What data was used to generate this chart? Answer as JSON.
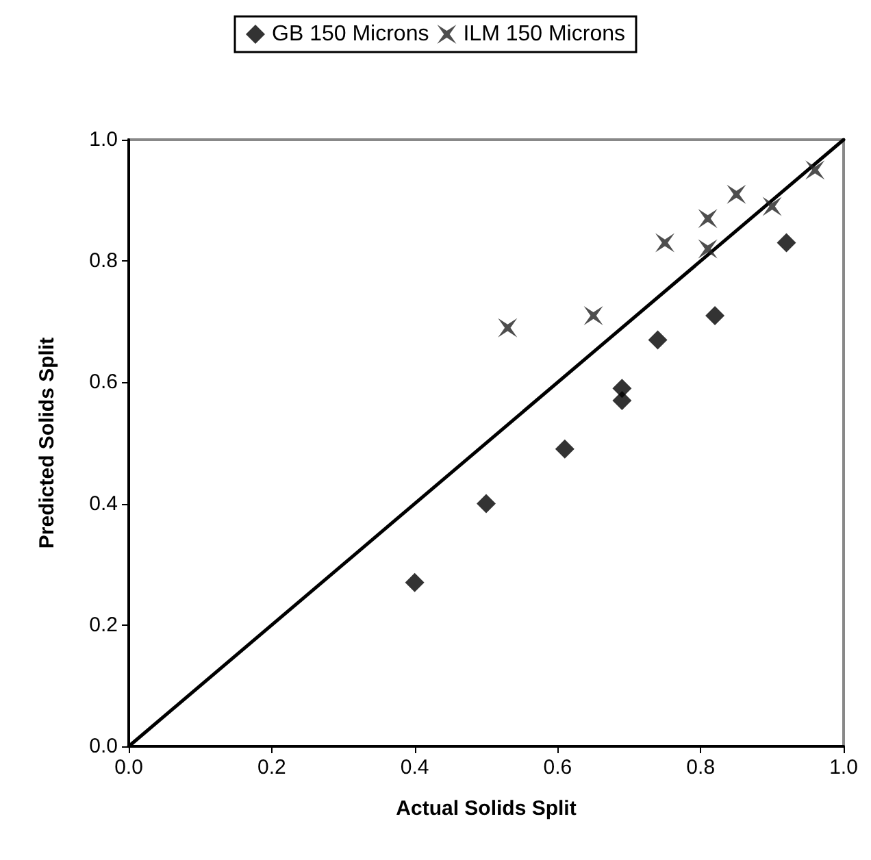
{
  "chart_data": {
    "type": "scatter",
    "xlabel": "Actual Solids Split",
    "ylabel": "Predicted Solids Split",
    "xlim": [
      0,
      1
    ],
    "ylim": [
      0,
      1
    ],
    "xticks": [
      {
        "value": 0,
        "label": "0.0"
      },
      {
        "value": 0.2,
        "label": "0.2"
      },
      {
        "value": 0.4,
        "label": "0.4"
      },
      {
        "value": 0.6,
        "label": "0.6"
      },
      {
        "value": 0.8,
        "label": "0.8"
      },
      {
        "value": 1,
        "label": "1.0"
      }
    ],
    "yticks": [
      {
        "value": 0,
        "label": "0.0"
      },
      {
        "value": 0.2,
        "label": "0.2"
      },
      {
        "value": 0.4,
        "label": "0.4"
      },
      {
        "value": 0.6,
        "label": "0.6"
      },
      {
        "value": 0.8,
        "label": "0.8"
      },
      {
        "value": 1,
        "label": "1.0"
      }
    ],
    "grid": false,
    "legend": "top",
    "series": [
      {
        "name": "GB 150 Microns",
        "color": "#000000",
        "marker": "diamond",
        "x": [
          0.4,
          0.5,
          0.61,
          0.69,
          0.69,
          0.74,
          0.82,
          0.92
        ],
        "values": [
          0.27,
          0.4,
          0.49,
          0.59,
          0.57,
          0.67,
          0.71,
          0.83
        ]
      },
      {
        "name": "ILM 150 Microns",
        "color": "#222222",
        "marker": "star",
        "x": [
          0.53,
          0.65,
          0.75,
          0.81,
          0.81,
          0.85,
          0.9,
          0.96
        ],
        "values": [
          0.69,
          0.71,
          0.83,
          0.87,
          0.82,
          0.91,
          0.89,
          0.95
        ]
      },
      {
        "type": "line",
        "color": "#000000",
        "line_style": "solid",
        "marker": "none",
        "x": [
          0,
          1
        ],
        "values": [
          0,
          1
        ]
      }
    ]
  }
}
